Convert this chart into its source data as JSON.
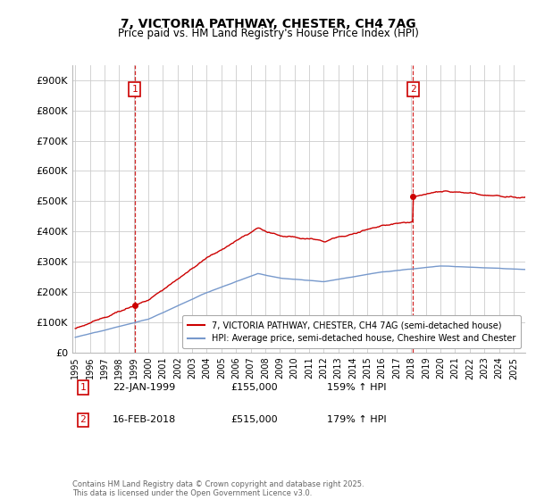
{
  "title_line1": "7, VICTORIA PATHWAY, CHESTER, CH4 7AG",
  "title_line2": "Price paid vs. HM Land Registry's House Price Index (HPI)",
  "background_color": "#ffffff",
  "grid_color": "#cccccc",
  "hpi_color": "#7799cc",
  "price_color": "#cc0000",
  "purchase1_date": 1999.055,
  "purchase1_price": 155000,
  "purchase2_date": 2018.12,
  "purchase2_price": 515000,
  "annotation1": {
    "box_label": "1",
    "date": "22-JAN-1999",
    "price": "£155,000",
    "hpi_note": "159% ↑ HPI"
  },
  "annotation2": {
    "box_label": "2",
    "date": "16-FEB-2018",
    "price": "£515,000",
    "hpi_note": "179% ↑ HPI"
  },
  "legend_line1": "7, VICTORIA PATHWAY, CHESTER, CH4 7AG (semi-detached house)",
  "legend_line2": "HPI: Average price, semi-detached house, Cheshire West and Chester",
  "footnote": "Contains HM Land Registry data © Crown copyright and database right 2025.\nThis data is licensed under the Open Government Licence v3.0.",
  "ylim": [
    0,
    950000
  ],
  "xlim_start": 1994.8,
  "xlim_end": 2025.8,
  "yticks": [
    0,
    100000,
    200000,
    300000,
    400000,
    500000,
    600000,
    700000,
    800000,
    900000
  ],
  "ytick_labels": [
    "£0",
    "£100K",
    "£200K",
    "£300K",
    "£400K",
    "£500K",
    "£600K",
    "£700K",
    "£800K",
    "£900K"
  ]
}
